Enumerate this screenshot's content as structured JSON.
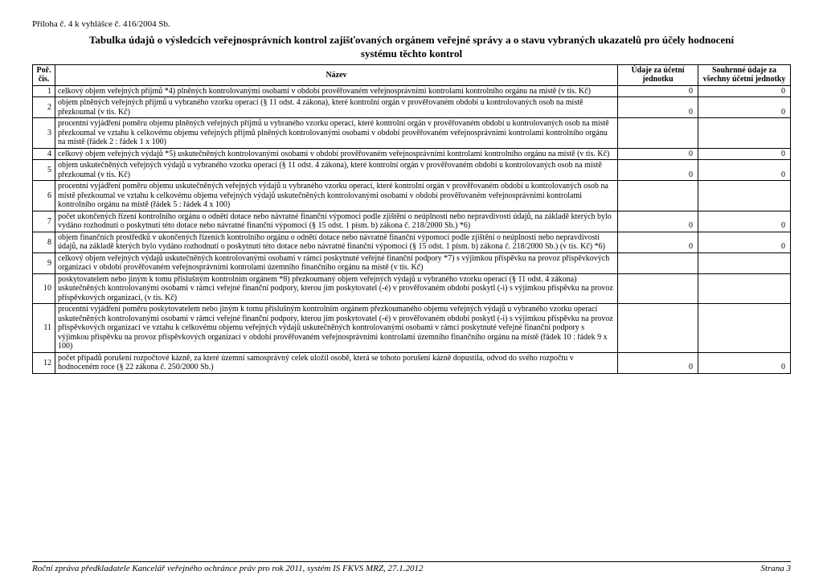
{
  "header_ref": "Příloha č. 4 k vyhlášce č. 416/2004 Sb.",
  "title_line1": "Tabulka údajů o výsledcích veřejnosprávních kontrol zajišťovaných orgánem veřejné správy a o stavu vybraných ukazatelů pro účely hodnocení",
  "title_line2": "systému těchto kontrol",
  "columns": {
    "c1": "Poř. čís.",
    "c2": "Název",
    "c3": "Údaje za účetní jednotku",
    "c4": "Souhrnné údaje za všechny účetní jednotky"
  },
  "rows": [
    {
      "n": "1",
      "desc": "celkový objem veřejných příjmů *4) plněných kontrolovanými osobami v období prověřovaném veřejnosprávními kontrolami kontrolního orgánu na místě (v tis. Kč)",
      "v1": "0",
      "v2": "0"
    },
    {
      "n": "2",
      "desc": "objem plněných veřejných příjmů u vybraného vzorku operací (§ 11 odst. 4 zákona), které kontrolní orgán v prověřovaném období u kontrolovaných osob na místě přezkoumal (v tis. Kč)",
      "v1": "0",
      "v2": "0"
    },
    {
      "n": "3",
      "desc": "procentní vyjádření poměru objemu plněných veřejných příjmů u vybraného vzorku operací, které kontrolní orgán v prověřovaném období u kontrolovaných osob na místě přezkoumal ve vztahu k celkovému objemu veřejných příjmů plněných kontrolovanými osobami v období prověřovaném veřejnosprávními kontrolami kontrolního orgánu na místě (řádek 2 : řádek 1 x 100)",
      "v1": "",
      "v2": ""
    },
    {
      "n": "4",
      "desc": "celkový objem veřejných výdajů *5) uskutečněných kontrolovanými osobami v období prověřovaném veřejnosprávními kontrolami kontrolního orgánu na místě (v tis. Kč)",
      "v1": "0",
      "v2": "0"
    },
    {
      "n": "5",
      "desc": "objem uskutečněných veřejných výdajů u vybraného vzorku operací (§ 11 odst. 4 zákona), které kontrolní orgán v prověřovaném období u kontrolovaných osob na místě přezkoumal (v tis. Kč)",
      "v1": "0",
      "v2": "0"
    },
    {
      "n": "6",
      "desc": "procentní vyjádření poměru objemu uskutečněných veřejných výdajů u vybraného vzorku operací, které kontrolní orgán v prověřovaném období u kontrolovaných osob na místě přezkoumal ve vztahu k celkovému objemu veřejných výdajů uskutečněných kontrolovanými osobami v období prověřovaném veřejnosprávními kontrolami kontrolního orgánu na místě (řádek 5 : řádek 4 x 100)",
      "v1": "",
      "v2": ""
    },
    {
      "n": "7",
      "desc": "počet ukončených řízení kontrolního orgánu o odnětí dotace nebo návratné finanční výpomoci podle zjištění o neúplnosti nebo nepravdivosti údajů, na základě kterých bylo vydáno rozhodnutí o poskytnutí této dotace nebo návratné finanční výpomoci (§ 15 odst. 1 písm. b) zákona č. 218/2000 Sb.) *6)",
      "v1": "0",
      "v2": "0"
    },
    {
      "n": "8",
      "desc": "objem finančních prostředků v ukončených řízeních kontrolního orgánu o odnětí dotace nebo návratné finanční výpomoci podle zjištění o neúplnosti nebo nepravdivosti údajů, na základě kterých bylo vydáno rozhodnutí o poskytnutí této dotace nebo návratné finanční výpomoci (§ 15 odst. 1 písm. b) zákona č. 218/2000 Sb.) (v tis. Kč) *6)",
      "v1": "0",
      "v2": "0"
    },
    {
      "n": "9",
      "desc": "celkový objem veřejných výdajů uskutečněných kontrolovanými osobami v rámci poskytnuté veřejné finanční podpory *7) s výjimkou příspěvku na provoz příspěvkových organizací v období prověřovaném veřejnosprávními kontrolami územního finančního orgánu na místě (v tis. Kč)",
      "v1": "",
      "v2": ""
    },
    {
      "n": "10",
      "desc": "poskytovatelem nebo jiným k tomu příslušným kontrolním orgánem *8) přezkoumaný objem veřejných výdajů u vybraného vzorku operací (§ 11 odst. 4 zákona) uskutečněných kontrolovanými osobami v rámci veřejné finanční podpory, kterou jim poskytovatel (-é) v prověřovaném období poskytl (-i) s výjimkou příspěvku na provoz příspěvkových organizací, (v tis. Kč)",
      "v1": "",
      "v2": ""
    },
    {
      "n": "11",
      "desc": "procentní vyjádření poměru poskytovatelem nebo jiným k tomu příslušným kontrolním orgánem přezkoumaného objemu veřejných výdajů u vybraného vzorku operací uskutečněných kontrolovanými osobami v rámci veřejné finanční podpory, kterou jim poskytovatel (-é) v prověřovaném období poskytl (-i) s výjimkou příspěvku na provoz příspěvkových organizací ve vztahu k celkovému objemu veřejných výdajů uskutečněných kontrolovanými osobami v rámci poskytnuté veřejné finanční podpory s výjimkou příspěvku na provoz příspěvkových organizací v období prověřovaném veřejnosprávními kontrolami územního finančního orgánu na místě (řádek 10 : řádek 9 x 100)",
      "v1": "",
      "v2": ""
    },
    {
      "n": "12",
      "desc": "počet případů porušení rozpočtové kázně, za které územní samosprávný celek uložil osobě, která se tohoto porušení kázně dopustila, odvod do svého rozpočtu v hodnoceném roce (§ 22 zákona č. 250/2000 Sb.)",
      "v1": "0",
      "v2": "0"
    }
  ],
  "footer_left": "Roční zpráva předkladatele Kancelář veřejného ochránce práv pro rok 2011, systém IS FKVS MRZ, 27.1.2012",
  "footer_right": "Strana 3"
}
